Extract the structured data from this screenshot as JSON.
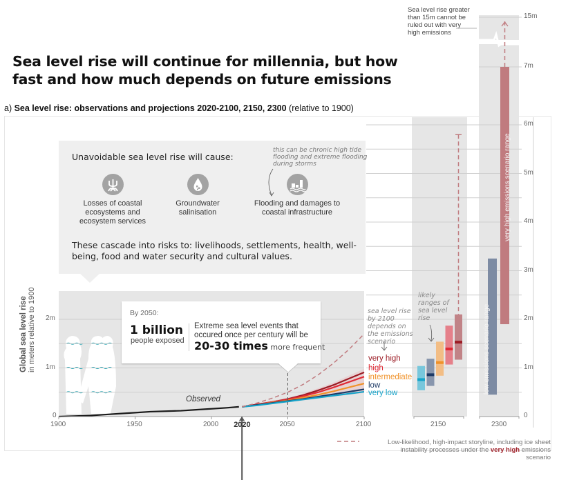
{
  "title": "Sea level rise will continue for millennia, but how fast and how much depends on future emissions",
  "subtitle": {
    "prefix": "a) ",
    "bold": "Sea level rise: observations and projections 2020-2100, 2150, 2300",
    "suffix": " (relative to 1900)"
  },
  "callout": {
    "heading": "Unavoidable sea level rise will cause:",
    "note": "this can be chronic high tide flooding and extreme flooding during storms",
    "impacts": [
      {
        "icon": "mangrove-roots-icon",
        "label": "Losses of coastal ecosystems and ecosystem services"
      },
      {
        "icon": "water-drop-salt-icon",
        "label": "Groundwater salinisation"
      },
      {
        "icon": "flooded-infrastructure-icon",
        "label": "Flooding and damages to coastal infrastructure"
      }
    ],
    "cascade": "These cascade into risks to: livelihoods, settlements, health, well-being, food and water security and cultural values."
  },
  "by2050": {
    "label": "By 2050:",
    "big": "1 billion",
    "big_sub": "people exposed",
    "extreme": "Extreme sea level events that occured once per century will be",
    "times": "20-30 times",
    "times_suffix": " more frequent"
  },
  "annotations": {
    "observed": "Observed",
    "depends": "sea level rise by 2100 depends on the emissions scenario",
    "likely": "likely ranges of sea level rise",
    "top_note": "Sea level rise greater than 15m cannot be ruled out with very high emissions",
    "legend_prefix": "Low-likelihood, high-impact storyline, including ice sheet instability processes under the ",
    "legend_bold": "very high",
    "legend_suffix": " emissions scenario"
  },
  "colors": {
    "very_high": "#9c1c25",
    "high": "#e02a35",
    "intermediate": "#f0922a",
    "low": "#1e3a66",
    "very_low": "#15a3c9",
    "storyline": "#c07b7f",
    "observed": "#1a1a1a",
    "panel_bg": "#e6e6e6",
    "callout_bg": "#efefef"
  },
  "chart_data": [
    {
      "type": "line",
      "title": "Sea level rise: observations and projections 2020-2100",
      "xlabel": "",
      "ylabel": "Global sea level rise",
      "ylabel_sub": "in meters relative to 1900",
      "xlim": [
        1900,
        2100
      ],
      "ylim": [
        0,
        2.4
      ],
      "x_ticks": [
        "1900",
        "1950",
        "2000",
        "2020",
        "2050",
        "2100"
      ],
      "y_ticks": [
        "0",
        "1m",
        "2m"
      ],
      "grid": true,
      "series": [
        {
          "name": "Observed",
          "x": [
            1900,
            1910,
            1920,
            1930,
            1940,
            1950,
            1960,
            1970,
            1980,
            1990,
            2000,
            2010,
            2018
          ],
          "y": [
            0.0,
            0.01,
            0.02,
            0.04,
            0.06,
            0.08,
            0.1,
            0.11,
            0.12,
            0.14,
            0.16,
            0.18,
            0.2
          ]
        },
        {
          "name": "very high",
          "x": [
            2020,
            2030,
            2040,
            2050,
            2060,
            2070,
            2080,
            2090,
            2100
          ],
          "y": [
            0.2,
            0.25,
            0.3,
            0.36,
            0.44,
            0.54,
            0.65,
            0.78,
            0.91
          ]
        },
        {
          "name": "high",
          "x": [
            2020,
            2030,
            2040,
            2050,
            2060,
            2070,
            2080,
            2090,
            2100
          ],
          "y": [
            0.2,
            0.25,
            0.3,
            0.35,
            0.42,
            0.5,
            0.6,
            0.71,
            0.82
          ]
        },
        {
          "name": "intermediate",
          "x": [
            2020,
            2030,
            2040,
            2050,
            2060,
            2070,
            2080,
            2090,
            2100
          ],
          "y": [
            0.2,
            0.24,
            0.29,
            0.33,
            0.39,
            0.45,
            0.52,
            0.6,
            0.68
          ]
        },
        {
          "name": "low",
          "x": [
            2020,
            2030,
            2040,
            2050,
            2060,
            2070,
            2080,
            2090,
            2100
          ],
          "y": [
            0.2,
            0.24,
            0.28,
            0.32,
            0.36,
            0.41,
            0.46,
            0.51,
            0.56
          ]
        },
        {
          "name": "very low",
          "x": [
            2020,
            2030,
            2040,
            2050,
            2060,
            2070,
            2080,
            2090,
            2100
          ],
          "y": [
            0.2,
            0.23,
            0.27,
            0.31,
            0.35,
            0.39,
            0.43,
            0.47,
            0.51
          ]
        },
        {
          "name": "Low-likelihood, high-impact storyline",
          "x": [
            2020,
            2030,
            2040,
            2050,
            2060,
            2070,
            2080,
            2090,
            2100
          ],
          "y": [
            0.2,
            0.28,
            0.38,
            0.5,
            0.66,
            0.86,
            1.1,
            1.38,
            1.7
          ]
        }
      ],
      "scenario_labels": [
        "very high",
        "high",
        "intermediate",
        "low",
        "very low"
      ]
    },
    {
      "type": "bar",
      "title": "2150",
      "categories": [
        "very low",
        "low",
        "intermediate",
        "high",
        "very high"
      ],
      "ranges": [
        {
          "name": "very low",
          "low": 0.54,
          "median": 0.76,
          "high": 1.04
        },
        {
          "name": "low",
          "low": 0.63,
          "median": 0.86,
          "high": 1.19
        },
        {
          "name": "intermediate",
          "low": 0.84,
          "median": 1.11,
          "high": 1.54
        },
        {
          "name": "high",
          "low": 1.07,
          "median": 1.39,
          "high": 1.87
        },
        {
          "name": "very high",
          "low": 1.17,
          "median": 1.53,
          "high": 2.1
        }
      ],
      "storyline_top": 5.8,
      "ylim": [
        0,
        6
      ]
    },
    {
      "type": "bar",
      "title": "2300",
      "ranges": [
        {
          "name": "low emissions scenario range",
          "low": 0.45,
          "high": 3.25
        },
        {
          "name": "very high emissions scenario range",
          "low": 1.9,
          "high": 7.0
        }
      ],
      "storyline_top": 15,
      "y_ticks": [
        "0",
        "1m",
        "2m",
        "3m",
        "4m",
        "5m",
        "6m",
        "7m",
        "15m"
      ],
      "ylim": [
        0,
        15
      ],
      "axis_break": [
        7,
        15
      ]
    }
  ]
}
